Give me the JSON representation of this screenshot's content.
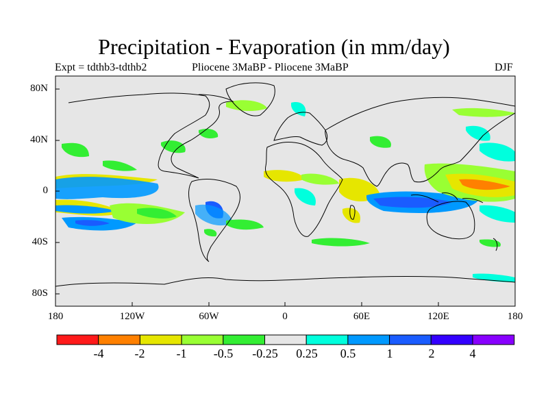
{
  "title": "Precipitation - Evaporation (in mm/day)",
  "subtitle_left": "Expt = tdthb3-tdthb2",
  "subtitle_center": "Pliocene   3MaBP - Pliocene   3MaBP",
  "subtitle_right": "DJF",
  "lat_labels": [
    "80N",
    "40N",
    "0",
    "40S",
    "80S"
  ],
  "lon_labels": [
    "180",
    "120W",
    "60W",
    "0",
    "60E",
    "120E",
    "180"
  ],
  "colorbar": {
    "labels": [
      "-4",
      "-2",
      "-1",
      "-0.5",
      "-0.25",
      "0.25",
      "0.5",
      "1",
      "2",
      "4"
    ],
    "colors": [
      "#ff1a1a",
      "#ff8000",
      "#e6e600",
      "#99ff33",
      "#33ee33",
      "#e6e6e6",
      "#00ffdd",
      "#0099ff",
      "#1a5cff",
      "#3300ff",
      "#8800ff"
    ]
  },
  "map": {
    "background": "#e6e6e6",
    "coast_color": "#000000"
  }
}
